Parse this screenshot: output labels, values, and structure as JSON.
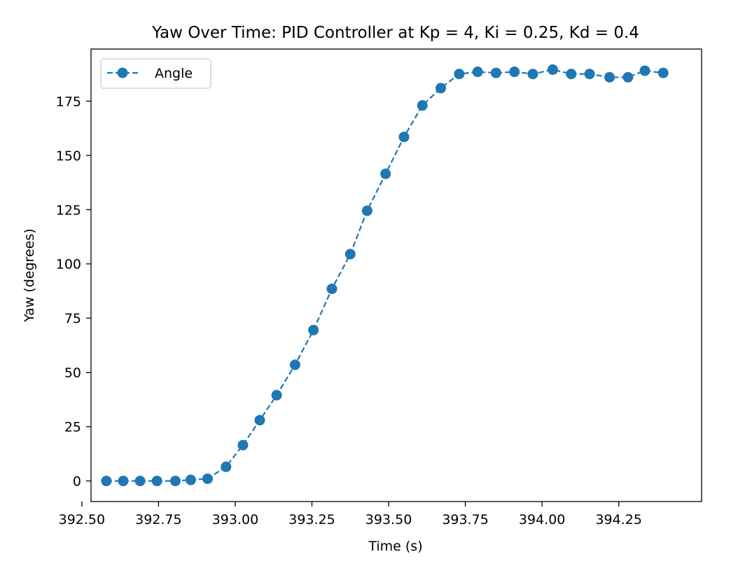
{
  "chart_data": {
    "type": "line",
    "title": "Yaw Over Time: PID Controller at Kp = 4, Ki = 0.25, Kd = 0.4",
    "xlabel": "Time (s)",
    "ylabel": "Yaw (degrees)",
    "xlim": [
      392.53,
      394.52
    ],
    "ylim": [
      -9.5,
      199
    ],
    "x_ticks": [
      392.5,
      392.75,
      393.0,
      393.25,
      393.5,
      393.75,
      394.0,
      394.25
    ],
    "x_tick_labels": [
      "392.50",
      "392.75",
      "393.00",
      "393.25",
      "393.50",
      "393.75",
      "394.00",
      "394.25"
    ],
    "y_ticks": [
      0,
      25,
      50,
      75,
      100,
      125,
      150,
      175
    ],
    "y_tick_labels": [
      "0",
      "25",
      "50",
      "75",
      "100",
      "125",
      "150",
      "175"
    ],
    "grid": false,
    "legend": {
      "position": "top-left"
    },
    "series": [
      {
        "name": "Angle",
        "color": "#1f77b4",
        "line_style": "dashed",
        "marker": "circle",
        "x": [
          392.58,
          392.635,
          392.69,
          392.745,
          392.805,
          392.855,
          392.91,
          392.97,
          393.025,
          393.08,
          393.135,
          393.195,
          393.255,
          393.315,
          393.375,
          393.43,
          393.49,
          393.55,
          393.61,
          393.67,
          393.73,
          393.79,
          393.85,
          393.91,
          393.97,
          394.035,
          394.095,
          394.155,
          394.22,
          394.28,
          394.335,
          394.395
        ],
        "y": [
          0,
          0,
          0,
          0,
          0,
          0.5,
          1,
          6.5,
          16.5,
          28,
          39.5,
          53.5,
          69.5,
          88.5,
          104.5,
          124.5,
          141.5,
          158.5,
          173,
          181,
          187.5,
          188.5,
          188,
          188.5,
          187.5,
          189.5,
          187.5,
          187.5,
          186,
          186,
          189,
          188
        ]
      }
    ]
  }
}
